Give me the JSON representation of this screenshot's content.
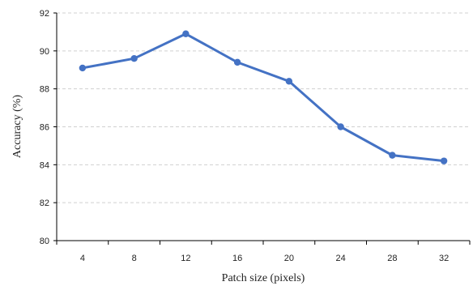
{
  "chart_data": {
    "type": "line",
    "title": "",
    "xlabel": "Patch size (pixels)",
    "ylabel": "Accuracy (%)",
    "x": [
      4,
      8,
      12,
      16,
      20,
      24,
      28,
      32
    ],
    "x_tick_labels": [
      "4",
      "8",
      "12",
      "16",
      "20",
      "24",
      "28",
      "32"
    ],
    "ylim": [
      80,
      92
    ],
    "y_ticks": [
      80,
      82,
      84,
      86,
      88,
      90,
      92
    ],
    "y_tick_labels": [
      "80",
      "82",
      "84",
      "86",
      "88",
      "90",
      "92"
    ],
    "series": [
      {
        "values": [
          89.1,
          89.6,
          90.9,
          89.4,
          88.4,
          86.0,
          84.5,
          84.2
        ],
        "color": "#4472c4"
      }
    ],
    "grid": "horizontal-dashed",
    "legend": "none"
  }
}
